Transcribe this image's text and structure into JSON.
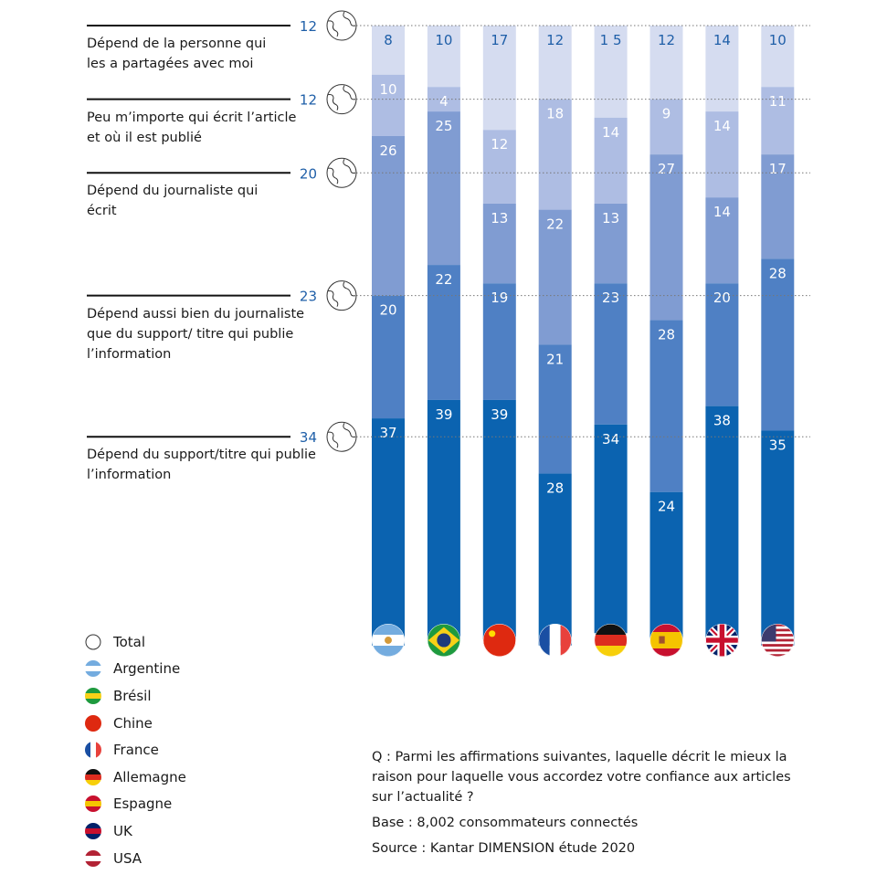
{
  "chart_data": {
    "type": "bar",
    "stacked": true,
    "orientation": "vertical",
    "unit": "%",
    "categories": [
      "Argentine",
      "Brésil",
      "Chine",
      "France",
      "Allemagne",
      "Espagne",
      "UK",
      "USA"
    ],
    "series": [
      {
        "name": "Dépend de la personne qui les a partagées avec moi",
        "total": 12,
        "color": "#d5dcf0",
        "label_color": "#1f5fa8",
        "values": [
          8,
          10,
          17,
          12,
          15,
          12,
          14,
          10
        ]
      },
      {
        "name": "Peu m’importe qui écrit l’article et où il est publié",
        "total": 12,
        "color": "#aebde3",
        "label_color": "#ffffff",
        "values": [
          10,
          4,
          12,
          18,
          14,
          9,
          14,
          11
        ]
      },
      {
        "name": "Dépend du journaliste qui écrit",
        "total": 20,
        "color": "#809cd2",
        "label_color": "#ffffff",
        "values": [
          26,
          25,
          13,
          22,
          13,
          27,
          14,
          17
        ]
      },
      {
        "name": "Dépend aussi bien du journaliste que du support/ titre qui publie l’information",
        "total": 23,
        "color": "#4f80c4",
        "label_color": "#ffffff",
        "values": [
          20,
          22,
          19,
          21,
          23,
          28,
          20,
          28
        ]
      },
      {
        "name": "Dépend du support/titre qui publie l’information",
        "total": 34,
        "color": "#0b63b0",
        "label_color": "#ffffff",
        "values": [
          37,
          39,
          39,
          28,
          34,
          24,
          38,
          35
        ]
      }
    ],
    "value_labels": [
      [
        "8",
        "10",
        "17",
        "12",
        "1 5",
        "12",
        "14",
        "10"
      ]
    ],
    "ylim": [
      0,
      100
    ],
    "grid": false,
    "reference_lines": "dotted at cumulative Total values",
    "legend_position": "bottom-left"
  },
  "categories_text": [
    {
      "label": "Dépend de la personne qui\nles a partagées avec moi",
      "total": "12"
    },
    {
      "label": "Peu m’importe qui écrit l’article\net où il est publié",
      "total": "12"
    },
    {
      "label": "Dépend du journaliste qui\nécrit",
      "total": "20"
    },
    {
      "label": "Dépend aussi bien du journaliste\nque du support/ titre qui publie\nl’information",
      "total": "23"
    },
    {
      "label": "Dépend du support/titre qui publie\nl’information",
      "total": "34"
    }
  ],
  "legend": [
    {
      "label": "Total",
      "icon": "globe-icon"
    },
    {
      "label": "Argentine",
      "icon": "flag-argentina-icon"
    },
    {
      "label": "Brésil",
      "icon": "flag-brazil-icon"
    },
    {
      "label": "Chine",
      "icon": "flag-china-icon"
    },
    {
      "label": "France",
      "icon": "flag-france-icon"
    },
    {
      "label": "Allemagne",
      "icon": "flag-germany-icon"
    },
    {
      "label": "Espagne",
      "icon": "flag-spain-icon"
    },
    {
      "label": "UK",
      "icon": "flag-uk-icon"
    },
    {
      "label": "USA",
      "icon": "flag-usa-icon"
    }
  ],
  "notes": {
    "question": "Q :  Parmi les affirmations suivantes, laquelle décrit le mieux la raison pour laquelle vous accordez votre confiance aux articles sur l’actualité ?",
    "base": "Base : 8,002 consommateurs connectés",
    "source": "Source : Kantar DIMENSION étude 2020"
  },
  "colors": {
    "total_label": "#1f5fa8",
    "text": "#1a1a1a"
  }
}
